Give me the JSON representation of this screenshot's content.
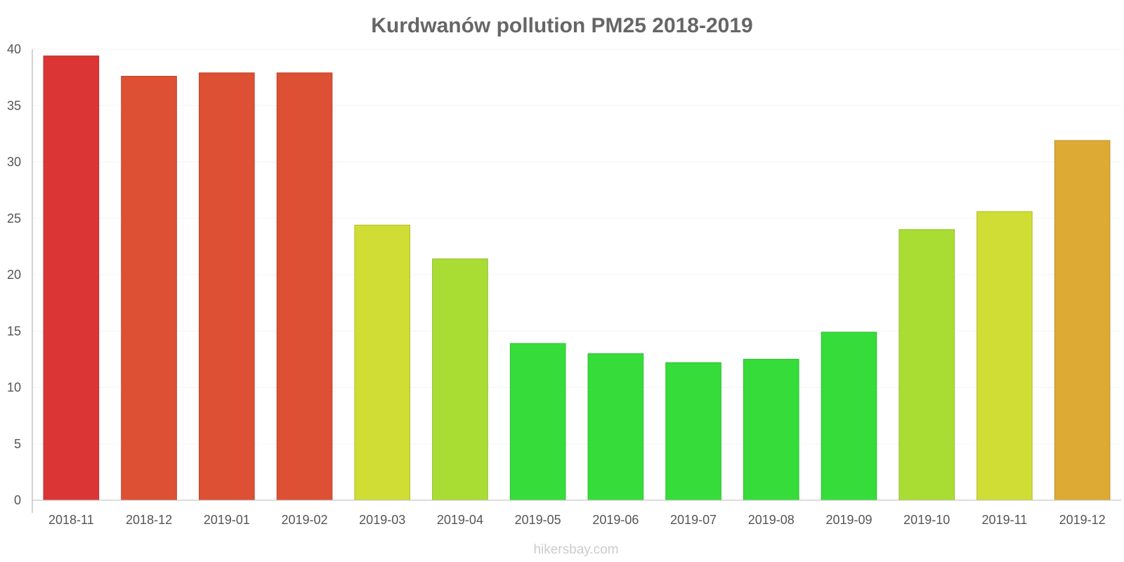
{
  "chart_data": {
    "type": "bar",
    "title": "Kurdwanów pollution PM25 2018-2019",
    "xlabel": "",
    "ylabel": "",
    "categories": [
      "2018-11",
      "2018-12",
      "2019-01",
      "2019-02",
      "2019-03",
      "2019-04",
      "2019-05",
      "2019-06",
      "2019-07",
      "2019-08",
      "2019-09",
      "2019-10",
      "2019-11",
      "2019-12"
    ],
    "values": [
      39.4,
      37.6,
      37.9,
      37.9,
      24.4,
      21.4,
      13.9,
      13,
      12.2,
      12.5,
      14.9,
      24,
      25.6,
      31.9
    ],
    "colors": [
      "#dc3535",
      "#dd5033",
      "#dd5033",
      "#dd5033",
      "#cfdd35",
      "#aadd33",
      "#36dd3a",
      "#36dd3a",
      "#36dd3a",
      "#36dd3a",
      "#36dd3a",
      "#aadd33",
      "#cfdd35",
      "#ddaa33"
    ],
    "yticks": [
      0,
      5,
      10,
      15,
      20,
      25,
      30,
      35,
      40
    ],
    "ylim": [
      0,
      40
    ],
    "grid": true,
    "legend": "none"
  },
  "watermark": "hikersbay.com"
}
